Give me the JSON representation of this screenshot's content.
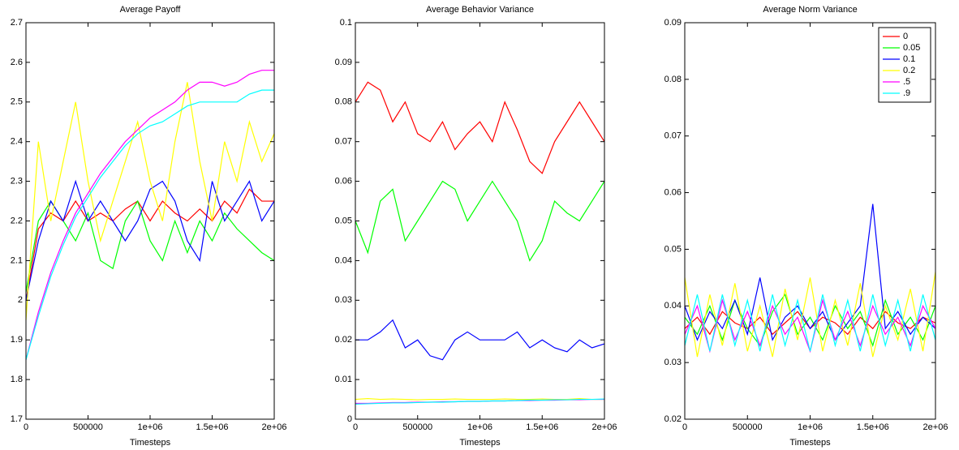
{
  "chart_data": [
    {
      "type": "line",
      "title": "Average Payoff",
      "xlabel": "Timesteps",
      "x": [
        0,
        100000,
        200000,
        300000,
        400000,
        500000,
        600000,
        700000,
        800000,
        900000,
        1000000,
        1100000,
        1200000,
        1300000,
        1400000,
        1500000,
        1600000,
        1700000,
        1800000,
        1900000,
        2000000
      ],
      "xlim": [
        0,
        2000000
      ],
      "xticks": [
        0,
        500000,
        {
          "value": 1000000,
          "label": "1e+06"
        },
        {
          "value": 1500000,
          "label": "1.5e+06"
        },
        {
          "value": 2000000,
          "label": "2e+06"
        }
      ],
      "ylim": [
        1.7,
        2.7
      ],
      "yticks": [
        1.7,
        1.8,
        1.9,
        2,
        2.1,
        2.2,
        2.3,
        2.4,
        2.5,
        2.6,
        2.7
      ],
      "series": [
        {
          "color": "#ff0000",
          "values": [
            2.0,
            2.18,
            2.22,
            2.2,
            2.25,
            2.2,
            2.22,
            2.2,
            2.23,
            2.25,
            2.2,
            2.25,
            2.22,
            2.2,
            2.23,
            2.2,
            2.25,
            2.22,
            2.28,
            2.25,
            2.25
          ]
        },
        {
          "color": "#00ff00",
          "values": [
            2.02,
            2.2,
            2.25,
            2.2,
            2.15,
            2.22,
            2.1,
            2.08,
            2.2,
            2.25,
            2.15,
            2.1,
            2.2,
            2.12,
            2.2,
            2.15,
            2.22,
            2.18,
            2.15,
            2.12,
            2.1
          ]
        },
        {
          "color": "#0000ff",
          "values": [
            2.0,
            2.15,
            2.25,
            2.2,
            2.3,
            2.2,
            2.25,
            2.2,
            2.15,
            2.2,
            2.28,
            2.3,
            2.25,
            2.15,
            2.1,
            2.3,
            2.2,
            2.25,
            2.3,
            2.2,
            2.25
          ]
        },
        {
          "color": "#ffff00",
          "values": [
            1.95,
            2.4,
            2.2,
            2.35,
            2.5,
            2.3,
            2.15,
            2.25,
            2.35,
            2.45,
            2.3,
            2.2,
            2.4,
            2.55,
            2.35,
            2.2,
            2.4,
            2.3,
            2.45,
            2.35,
            2.42
          ]
        },
        {
          "color": "#ff00ff",
          "values": [
            1.85,
            1.97,
            2.07,
            2.15,
            2.22,
            2.27,
            2.32,
            2.36,
            2.4,
            2.43,
            2.46,
            2.48,
            2.5,
            2.53,
            2.55,
            2.55,
            2.54,
            2.55,
            2.57,
            2.58,
            2.58
          ]
        },
        {
          "color": "#00ffff",
          "values": [
            1.85,
            1.96,
            2.06,
            2.14,
            2.21,
            2.26,
            2.31,
            2.35,
            2.39,
            2.42,
            2.44,
            2.45,
            2.47,
            2.49,
            2.5,
            2.5,
            2.5,
            2.5,
            2.52,
            2.53,
            2.53
          ]
        }
      ]
    },
    {
      "type": "line",
      "title": "Average Behavior Variance",
      "xlabel": "Timesteps",
      "x": [
        0,
        100000,
        200000,
        300000,
        400000,
        500000,
        600000,
        700000,
        800000,
        900000,
        1000000,
        1100000,
        1200000,
        1300000,
        1400000,
        1500000,
        1600000,
        1700000,
        1800000,
        1900000,
        2000000
      ],
      "xlim": [
        0,
        2000000
      ],
      "xticks": [
        0,
        500000,
        {
          "value": 1000000,
          "label": "1e+06"
        },
        {
          "value": 1500000,
          "label": "1.5e+06"
        },
        {
          "value": 2000000,
          "label": "2e+06"
        }
      ],
      "ylim": [
        0,
        0.1
      ],
      "yticks": [
        0,
        0.01,
        0.02,
        0.03,
        0.04,
        0.05,
        0.06,
        0.07,
        0.08,
        0.09,
        0.1
      ],
      "series": [
        {
          "color": "#ff0000",
          "values": [
            0.08,
            0.085,
            0.083,
            0.075,
            0.08,
            0.072,
            0.07,
            0.075,
            0.068,
            0.072,
            0.075,
            0.07,
            0.08,
            0.073,
            0.065,
            0.062,
            0.07,
            0.075,
            0.08,
            0.075,
            0.07
          ]
        },
        {
          "color": "#00ff00",
          "values": [
            0.05,
            0.042,
            0.055,
            0.058,
            0.045,
            0.05,
            0.055,
            0.06,
            0.058,
            0.05,
            0.055,
            0.06,
            0.055,
            0.05,
            0.04,
            0.045,
            0.055,
            0.052,
            0.05,
            0.055,
            0.06
          ]
        },
        {
          "color": "#0000ff",
          "values": [
            0.02,
            0.02,
            0.022,
            0.025,
            0.018,
            0.02,
            0.016,
            0.015,
            0.02,
            0.022,
            0.02,
            0.02,
            0.02,
            0.022,
            0.018,
            0.02,
            0.018,
            0.017,
            0.02,
            0.018,
            0.019
          ]
        },
        {
          "color": "#ffff00",
          "values": [
            0.005,
            0.0052,
            0.005,
            0.0051,
            0.005,
            0.0049,
            0.005,
            0.005,
            0.0051,
            0.005,
            0.005,
            0.005,
            0.0051,
            0.005,
            0.005,
            0.0051,
            0.005,
            0.005,
            0.0052,
            0.005,
            0.005
          ]
        },
        {
          "color": "#ff00ff",
          "values": [
            0.004,
            0.004,
            0.0041,
            0.0042,
            0.0042,
            0.0043,
            0.0043,
            0.0044,
            0.0044,
            0.0045,
            0.0045,
            0.0046,
            0.0046,
            0.0047,
            0.0047,
            0.0048,
            0.0048,
            0.0049,
            0.0049,
            0.005,
            0.005
          ]
        },
        {
          "color": "#00ffff",
          "values": [
            0.0038,
            0.0039,
            0.004,
            0.0041,
            0.0041,
            0.0042,
            0.0043,
            0.0043,
            0.0044,
            0.0045,
            0.0045,
            0.0046,
            0.0046,
            0.0047,
            0.0048,
            0.0048,
            0.0049,
            0.0049,
            0.005,
            0.005,
            0.0051
          ]
        }
      ]
    },
    {
      "type": "line",
      "title": "Average Norm Variance",
      "xlabel": "Timesteps",
      "legend": "upper right",
      "x": [
        0,
        100000,
        200000,
        300000,
        400000,
        500000,
        600000,
        700000,
        800000,
        900000,
        1000000,
        1100000,
        1200000,
        1300000,
        1400000,
        1500000,
        1600000,
        1700000,
        1800000,
        1900000,
        2000000
      ],
      "xlim": [
        0,
        2000000
      ],
      "xticks": [
        0,
        500000,
        {
          "value": 1000000,
          "label": "1e+06"
        },
        {
          "value": 1500000,
          "label": "1.5e+06"
        },
        {
          "value": 2000000,
          "label": "2e+06"
        }
      ],
      "ylim": [
        0.02,
        0.09
      ],
      "yticks": [
        0.02,
        0.03,
        0.04,
        0.05,
        0.06,
        0.07,
        0.08,
        0.09
      ],
      "series": [
        {
          "name": "0",
          "color": "#ff0000",
          "values": [
            0.036,
            0.038,
            0.035,
            0.039,
            0.037,
            0.036,
            0.038,
            0.035,
            0.037,
            0.039,
            0.036,
            0.038,
            0.037,
            0.035,
            0.038,
            0.036,
            0.039,
            0.037,
            0.036,
            0.038,
            0.037
          ]
        },
        {
          "name": "0.05",
          "color": "#00ff00",
          "values": [
            0.038,
            0.035,
            0.04,
            0.034,
            0.041,
            0.036,
            0.033,
            0.039,
            0.042,
            0.035,
            0.038,
            0.034,
            0.04,
            0.036,
            0.039,
            0.033,
            0.041,
            0.035,
            0.038,
            0.034,
            0.04
          ]
        },
        {
          "name": "0.1",
          "color": "#0000ff",
          "values": [
            0.04,
            0.034,
            0.039,
            0.036,
            0.041,
            0.035,
            0.045,
            0.034,
            0.038,
            0.04,
            0.036,
            0.039,
            0.034,
            0.037,
            0.04,
            0.058,
            0.036,
            0.039,
            0.035,
            0.038,
            0.036
          ]
        },
        {
          "name": "0.2",
          "color": "#ffff00",
          "values": [
            0.045,
            0.031,
            0.042,
            0.033,
            0.044,
            0.032,
            0.04,
            0.031,
            0.043,
            0.034,
            0.045,
            0.032,
            0.041,
            0.033,
            0.044,
            0.031,
            0.04,
            0.034,
            0.043,
            0.032,
            0.046
          ]
        },
        {
          "name": ".5",
          "color": "#ff00ff",
          "values": [
            0.035,
            0.04,
            0.032,
            0.041,
            0.034,
            0.039,
            0.033,
            0.04,
            0.035,
            0.038,
            0.032,
            0.041,
            0.034,
            0.039,
            0.033,
            0.04,
            0.035,
            0.038,
            0.033,
            0.04,
            0.036
          ]
        },
        {
          "name": ".9",
          "color": "#00ffff",
          "values": [
            0.033,
            0.042,
            0.032,
            0.042,
            0.033,
            0.041,
            0.032,
            0.042,
            0.033,
            0.041,
            0.032,
            0.042,
            0.033,
            0.041,
            0.032,
            0.042,
            0.033,
            0.041,
            0.032,
            0.042,
            0.034
          ]
        }
      ]
    }
  ]
}
